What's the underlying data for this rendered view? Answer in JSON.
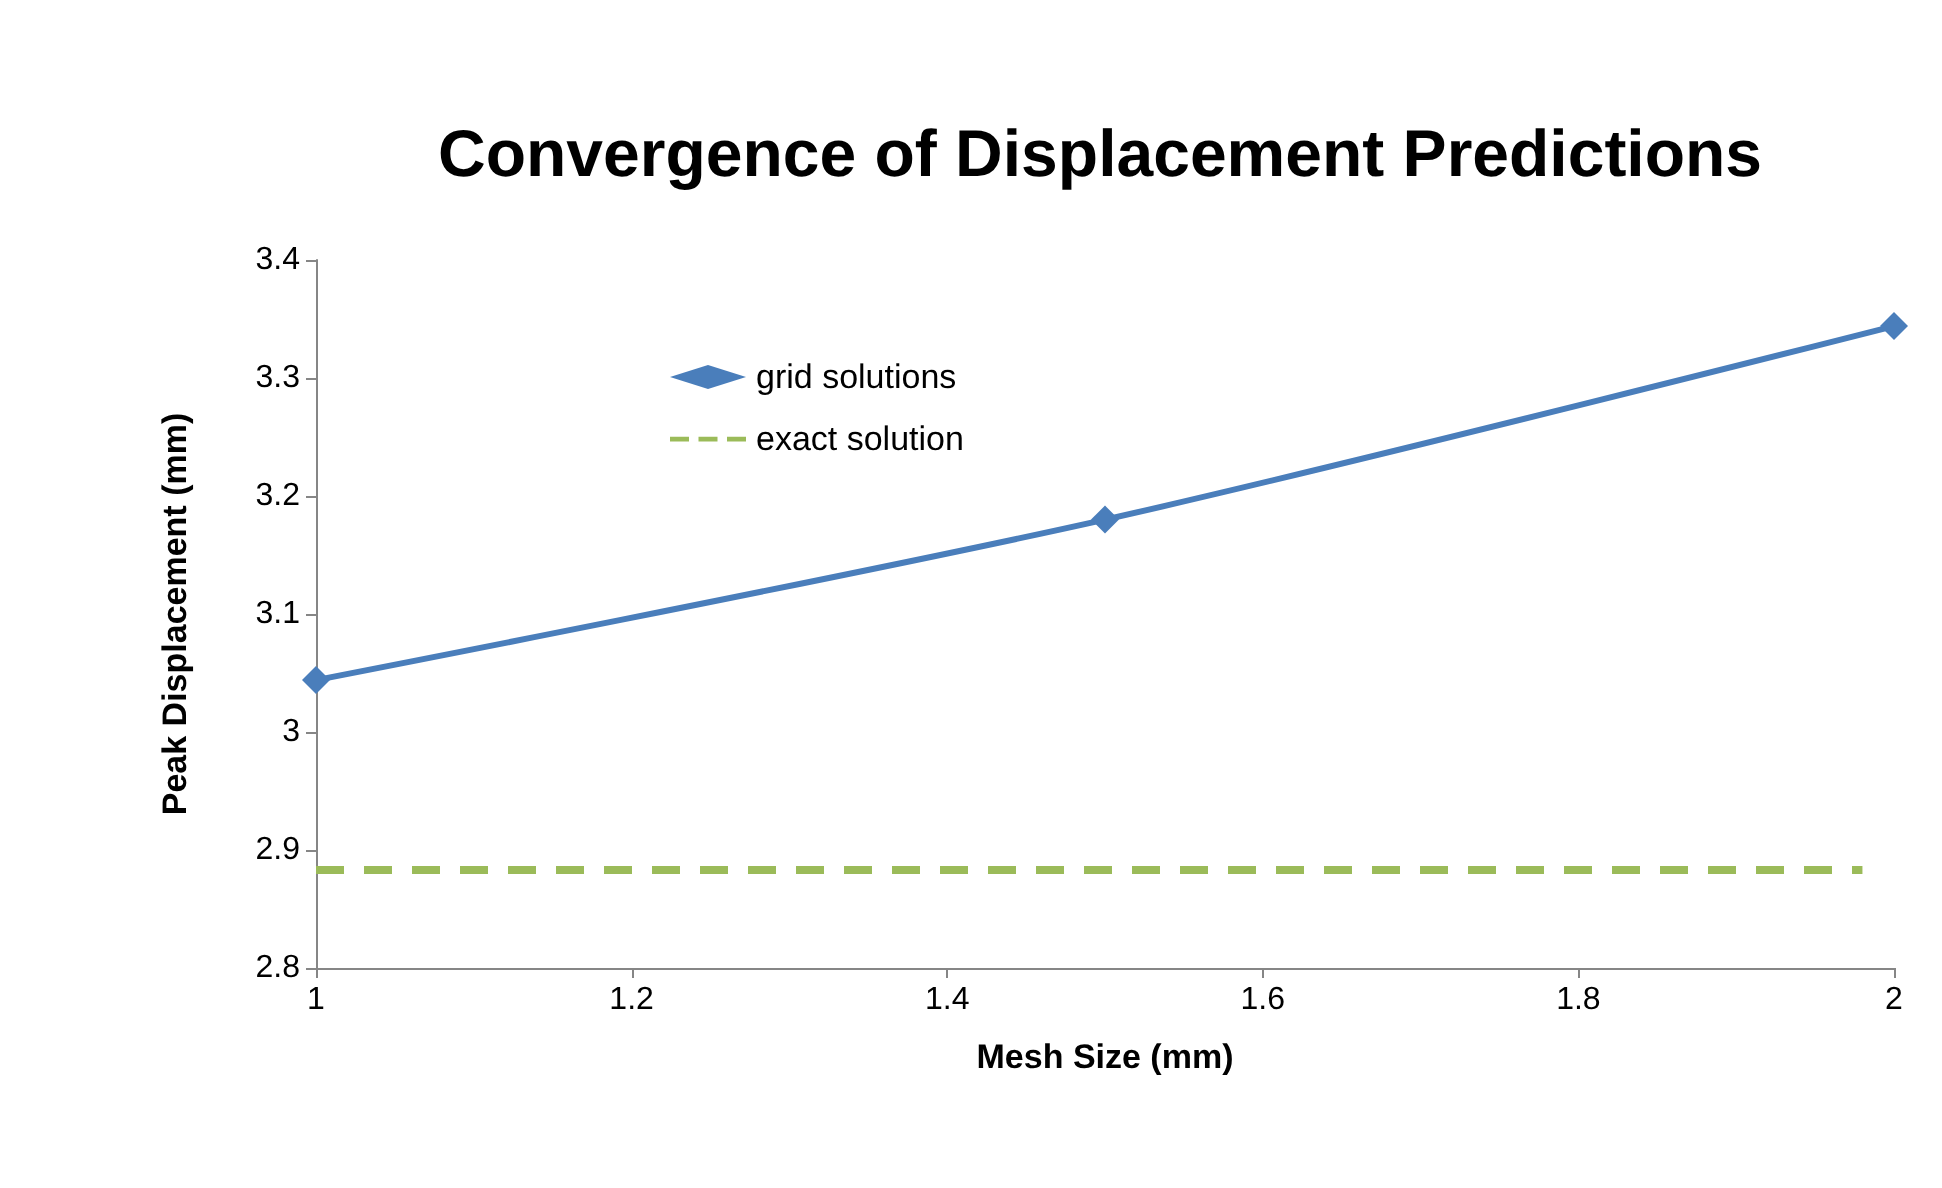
{
  "chart_data": {
    "type": "line",
    "title": "Convergence of Displacement Predictions",
    "xlabel": "Mesh Size (mm)",
    "ylabel": "Peak Displacement (mm)",
    "xlim": [
      1,
      2
    ],
    "xticks": [
      1,
      1.2,
      1.4,
      1.6,
      1.8,
      2
    ],
    "ylim": [
      2.8,
      3.4
    ],
    "yticks": [
      2.8,
      2.9,
      3,
      3.1,
      3.2,
      3.3,
      3.4
    ],
    "grid": false,
    "legend": "top left",
    "series": [
      {
        "name": "grid solutions",
        "color": "#4a7ebb",
        "x": [
          1,
          1.5,
          2
        ],
        "values": [
          3.044,
          3.18,
          3.344
        ],
        "marker": "diamond",
        "line_style": "solid"
      },
      {
        "name": "exact solution",
        "color": "#9bbb59",
        "x": [
          1,
          1.98
        ],
        "values": [
          2.883,
          2.883
        ],
        "marker": "none",
        "line_style": "dashed"
      }
    ]
  }
}
